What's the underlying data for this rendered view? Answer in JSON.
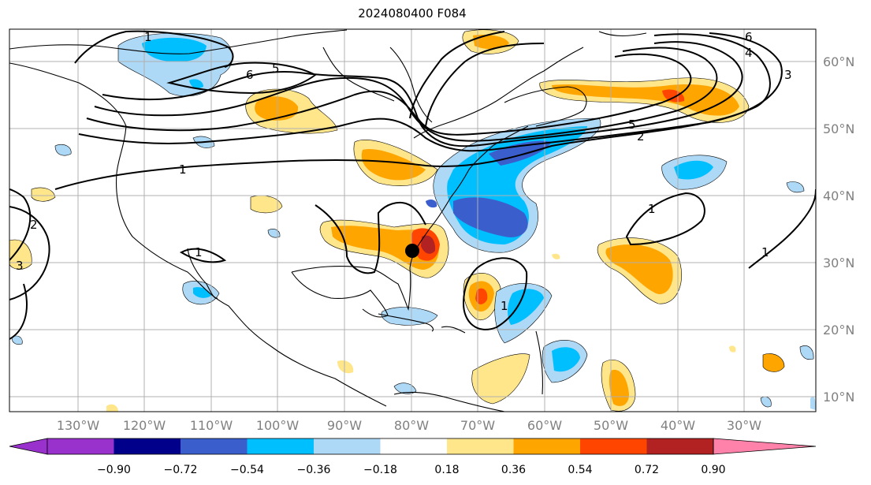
{
  "title": "2024080400 F084",
  "lon_ticks": [
    "130°W",
    "120°W",
    "110°W",
    "100°W",
    "90°W",
    "80°W",
    "70°W",
    "60°W",
    "50°W",
    "40°W",
    "30°W"
  ],
  "lat_ticks": [
    "60°N",
    "50°N",
    "40°N",
    "30°N",
    "20°N",
    "10°N"
  ],
  "colorbar": {
    "labels": [
      "−0.90",
      "−0.72",
      "−0.54",
      "−0.36",
      "−0.18",
      "0.18",
      "0.36",
      "0.54",
      "0.72",
      "0.90"
    ],
    "colors": [
      "#9932cc",
      "#00008b",
      "#3a5fcd",
      "#00bfff",
      "#add8f6",
      "#ffffff",
      "#ffe68a",
      "#ffa500",
      "#ff4500",
      "#b22222"
    ],
    "under_color": "#9932cc",
    "over_color": "#ff82ab"
  },
  "contour_labels": [
    "1",
    "1",
    "1",
    "2",
    "2",
    "3",
    "3",
    "4",
    "5",
    "5",
    "6",
    "6",
    "1",
    "1",
    "1"
  ],
  "marker": "storm-center-dot"
}
